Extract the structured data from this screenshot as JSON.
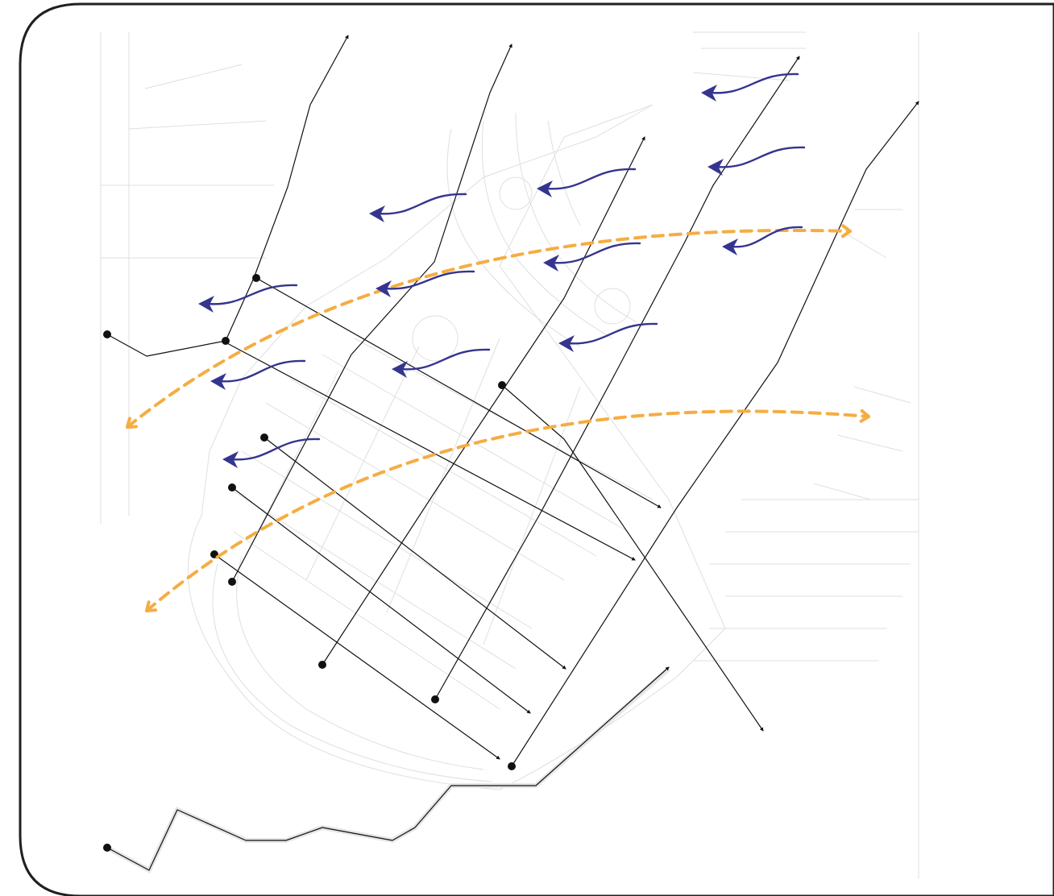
{
  "diagram": {
    "kind": "site-analysis-map",
    "colors": {
      "frame": "#231f20",
      "basemap": "#d9d9d9",
      "axis_line": "#111111",
      "node": "#111111",
      "wind_arrow": "#35348f",
      "view_corridor": "#f5ad42"
    },
    "legend": null
  }
}
